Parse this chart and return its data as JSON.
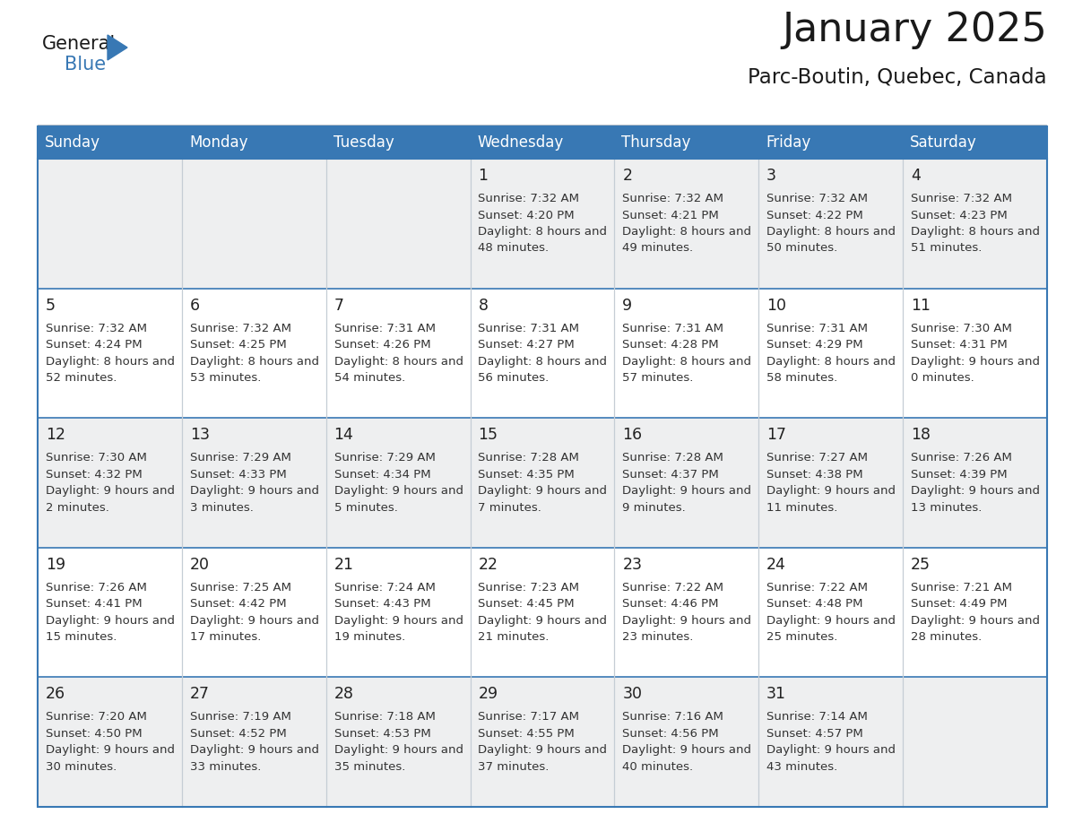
{
  "title": "January 2025",
  "subtitle": "Parc-Boutin, Quebec, Canada",
  "header_bg_color": "#3878b4",
  "header_text_color": "#ffffff",
  "border_color": "#3878b4",
  "title_color": "#1a1a1a",
  "subtitle_color": "#1a1a1a",
  "row0_bg": "#eeeff0",
  "row1_bg": "#ffffff",
  "day_names": [
    "Sunday",
    "Monday",
    "Tuesday",
    "Wednesday",
    "Thursday",
    "Friday",
    "Saturday"
  ],
  "days": [
    {
      "day": 1,
      "col": 3,
      "row": 0,
      "sunrise": "7:32 AM",
      "sunset": "4:20 PM",
      "daylight": "8 hours and 48 minutes"
    },
    {
      "day": 2,
      "col": 4,
      "row": 0,
      "sunrise": "7:32 AM",
      "sunset": "4:21 PM",
      "daylight": "8 hours and 49 minutes"
    },
    {
      "day": 3,
      "col": 5,
      "row": 0,
      "sunrise": "7:32 AM",
      "sunset": "4:22 PM",
      "daylight": "8 hours and 50 minutes"
    },
    {
      "day": 4,
      "col": 6,
      "row": 0,
      "sunrise": "7:32 AM",
      "sunset": "4:23 PM",
      "daylight": "8 hours and 51 minutes"
    },
    {
      "day": 5,
      "col": 0,
      "row": 1,
      "sunrise": "7:32 AM",
      "sunset": "4:24 PM",
      "daylight": "8 hours and 52 minutes"
    },
    {
      "day": 6,
      "col": 1,
      "row": 1,
      "sunrise": "7:32 AM",
      "sunset": "4:25 PM",
      "daylight": "8 hours and 53 minutes"
    },
    {
      "day": 7,
      "col": 2,
      "row": 1,
      "sunrise": "7:31 AM",
      "sunset": "4:26 PM",
      "daylight": "8 hours and 54 minutes"
    },
    {
      "day": 8,
      "col": 3,
      "row": 1,
      "sunrise": "7:31 AM",
      "sunset": "4:27 PM",
      "daylight": "8 hours and 56 minutes"
    },
    {
      "day": 9,
      "col": 4,
      "row": 1,
      "sunrise": "7:31 AM",
      "sunset": "4:28 PM",
      "daylight": "8 hours and 57 minutes"
    },
    {
      "day": 10,
      "col": 5,
      "row": 1,
      "sunrise": "7:31 AM",
      "sunset": "4:29 PM",
      "daylight": "8 hours and 58 minutes"
    },
    {
      "day": 11,
      "col": 6,
      "row": 1,
      "sunrise": "7:30 AM",
      "sunset": "4:31 PM",
      "daylight": "9 hours and 0 minutes"
    },
    {
      "day": 12,
      "col": 0,
      "row": 2,
      "sunrise": "7:30 AM",
      "sunset": "4:32 PM",
      "daylight": "9 hours and 2 minutes"
    },
    {
      "day": 13,
      "col": 1,
      "row": 2,
      "sunrise": "7:29 AM",
      "sunset": "4:33 PM",
      "daylight": "9 hours and 3 minutes"
    },
    {
      "day": 14,
      "col": 2,
      "row": 2,
      "sunrise": "7:29 AM",
      "sunset": "4:34 PM",
      "daylight": "9 hours and 5 minutes"
    },
    {
      "day": 15,
      "col": 3,
      "row": 2,
      "sunrise": "7:28 AM",
      "sunset": "4:35 PM",
      "daylight": "9 hours and 7 minutes"
    },
    {
      "day": 16,
      "col": 4,
      "row": 2,
      "sunrise": "7:28 AM",
      "sunset": "4:37 PM",
      "daylight": "9 hours and 9 minutes"
    },
    {
      "day": 17,
      "col": 5,
      "row": 2,
      "sunrise": "7:27 AM",
      "sunset": "4:38 PM",
      "daylight": "9 hours and 11 minutes"
    },
    {
      "day": 18,
      "col": 6,
      "row": 2,
      "sunrise": "7:26 AM",
      "sunset": "4:39 PM",
      "daylight": "9 hours and 13 minutes"
    },
    {
      "day": 19,
      "col": 0,
      "row": 3,
      "sunrise": "7:26 AM",
      "sunset": "4:41 PM",
      "daylight": "9 hours and 15 minutes"
    },
    {
      "day": 20,
      "col": 1,
      "row": 3,
      "sunrise": "7:25 AM",
      "sunset": "4:42 PM",
      "daylight": "9 hours and 17 minutes"
    },
    {
      "day": 21,
      "col": 2,
      "row": 3,
      "sunrise": "7:24 AM",
      "sunset": "4:43 PM",
      "daylight": "9 hours and 19 minutes"
    },
    {
      "day": 22,
      "col": 3,
      "row": 3,
      "sunrise": "7:23 AM",
      "sunset": "4:45 PM",
      "daylight": "9 hours and 21 minutes"
    },
    {
      "day": 23,
      "col": 4,
      "row": 3,
      "sunrise": "7:22 AM",
      "sunset": "4:46 PM",
      "daylight": "9 hours and 23 minutes"
    },
    {
      "day": 24,
      "col": 5,
      "row": 3,
      "sunrise": "7:22 AM",
      "sunset": "4:48 PM",
      "daylight": "9 hours and 25 minutes"
    },
    {
      "day": 25,
      "col": 6,
      "row": 3,
      "sunrise": "7:21 AM",
      "sunset": "4:49 PM",
      "daylight": "9 hours and 28 minutes"
    },
    {
      "day": 26,
      "col": 0,
      "row": 4,
      "sunrise": "7:20 AM",
      "sunset": "4:50 PM",
      "daylight": "9 hours and 30 minutes"
    },
    {
      "day": 27,
      "col": 1,
      "row": 4,
      "sunrise": "7:19 AM",
      "sunset": "4:52 PM",
      "daylight": "9 hours and 33 minutes"
    },
    {
      "day": 28,
      "col": 2,
      "row": 4,
      "sunrise": "7:18 AM",
      "sunset": "4:53 PM",
      "daylight": "9 hours and 35 minutes"
    },
    {
      "day": 29,
      "col": 3,
      "row": 4,
      "sunrise": "7:17 AM",
      "sunset": "4:55 PM",
      "daylight": "9 hours and 37 minutes"
    },
    {
      "day": 30,
      "col": 4,
      "row": 4,
      "sunrise": "7:16 AM",
      "sunset": "4:56 PM",
      "daylight": "9 hours and 40 minutes"
    },
    {
      "day": 31,
      "col": 5,
      "row": 4,
      "sunrise": "7:14 AM",
      "sunset": "4:57 PM",
      "daylight": "9 hours and 43 minutes"
    }
  ],
  "num_rows": 5,
  "num_cols": 7,
  "logo_general_color": "#1a1a1a",
  "logo_blue_color": "#3878b4"
}
